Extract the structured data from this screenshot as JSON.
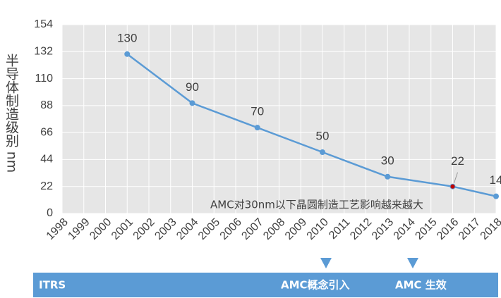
{
  "chart_data": {
    "type": "line",
    "ylabel": "半导体制造级别",
    "yunit": "nm",
    "x": [
      2001,
      2004,
      2007,
      2010,
      2013,
      2016,
      2018
    ],
    "series": [
      {
        "name": "制造级别",
        "color": "#5b9bd5",
        "values": [
          130,
          90,
          70,
          50,
          30,
          22,
          14
        ]
      }
    ],
    "highlight": {
      "index": 5,
      "color": "#c00000"
    },
    "xlim": [
      1998,
      2018
    ],
    "xticks": [
      1998,
      1999,
      2000,
      2001,
      2002,
      2003,
      2004,
      2005,
      2006,
      2007,
      2008,
      2009,
      2010,
      2011,
      2012,
      2013,
      2014,
      2015,
      2016,
      2017,
      2018
    ],
    "ylim": [
      0,
      154
    ],
    "yticks": [
      0,
      22,
      44,
      66,
      88,
      110,
      132,
      154
    ],
    "grid": true,
    "background": "#e6e6e6",
    "annotation": "AMC对30nm以下晶圆制造工艺影响越来越大",
    "timeline": {
      "color": "#5b9bd5",
      "labels": [
        "ITRS",
        "AMC概念引入",
        "AMC 生效"
      ]
    }
  }
}
